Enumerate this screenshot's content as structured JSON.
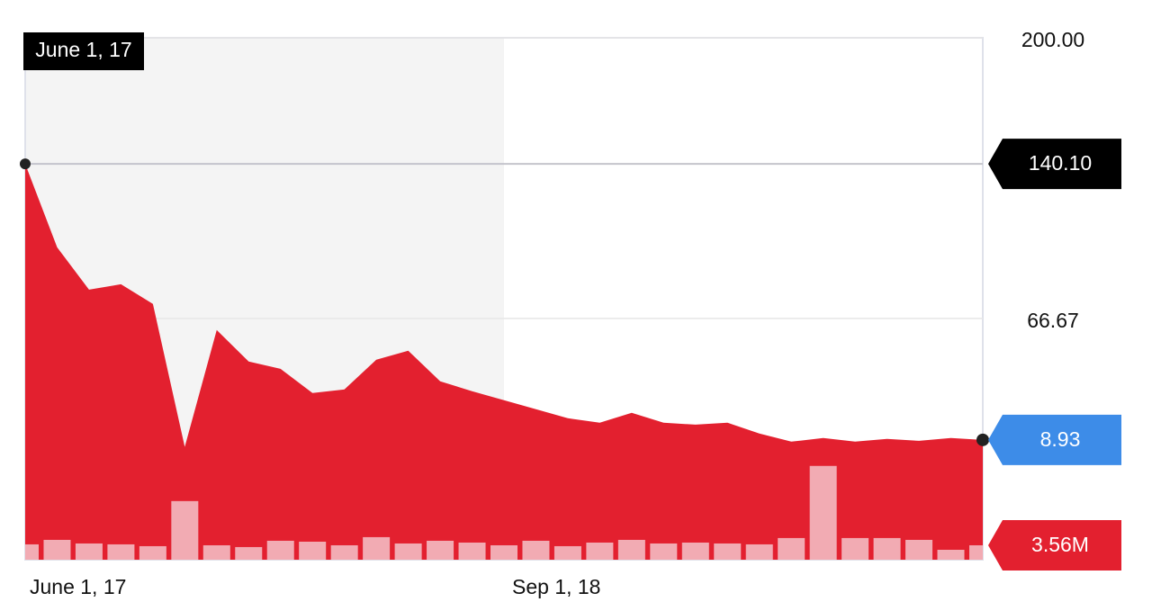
{
  "chart_data": {
    "type": "area",
    "color": "#e3202f",
    "categories": [
      "June 1, 17",
      null,
      null,
      null,
      null,
      null,
      null,
      null,
      null,
      null,
      null,
      null,
      null,
      null,
      null,
      "Sep 1, 18",
      null,
      null,
      null,
      null,
      null,
      null,
      null,
      null,
      null,
      null,
      null,
      null,
      null,
      null,
      null
    ],
    "values": [
      140.1,
      100.4,
      80.3,
      82.9,
      73.5,
      5.6,
      61.1,
      46.2,
      42.7,
      31.2,
      32.9,
      47,
      51.3,
      36.8,
      32.1,
      27.8,
      23.5,
      19.2,
      17.1,
      21.8,
      17.1,
      16.2,
      17.1,
      12,
      8.1,
      9.8,
      8.1,
      9.4,
      8.5,
      9.8,
      8.93
    ],
    "value_labels": [
      "140.10",
      null,
      null,
      null,
      null,
      null,
      null,
      null,
      null,
      null,
      null,
      null,
      null,
      null,
      null,
      null,
      null,
      null,
      null,
      null,
      null,
      null,
      null,
      null,
      null,
      null,
      null,
      null,
      null,
      null,
      "8.93"
    ],
    "ylim": [
      -48,
      200
    ],
    "yticks": [
      {
        "value": 200,
        "label": "200.00"
      },
      {
        "value": 66.67,
        "label": "66.67"
      }
    ],
    "grid": true,
    "volume": {
      "color": "#f3b7bf",
      "values": [
        3.79,
        4.9,
        4.01,
        3.79,
        3.34,
        14.48,
        3.56,
        3.12,
        4.68,
        4.45,
        3.56,
        5.57,
        4.01,
        4.68,
        4.23,
        3.56,
        4.68,
        3.34,
        4.23,
        4.9,
        4.01,
        4.23,
        4.01,
        3.79,
        5.35,
        23.16,
        5.35,
        5.35,
        4.9,
        2.45,
        3.56
      ],
      "value_labels": [
        null,
        null,
        null,
        null,
        null,
        null,
        null,
        null,
        null,
        null,
        null,
        null,
        null,
        null,
        null,
        null,
        null,
        null,
        null,
        null,
        null,
        null,
        null,
        null,
        null,
        null,
        null,
        null,
        null,
        null,
        "3.56M"
      ],
      "ylim": [
        0,
        40
      ]
    }
  }
}
